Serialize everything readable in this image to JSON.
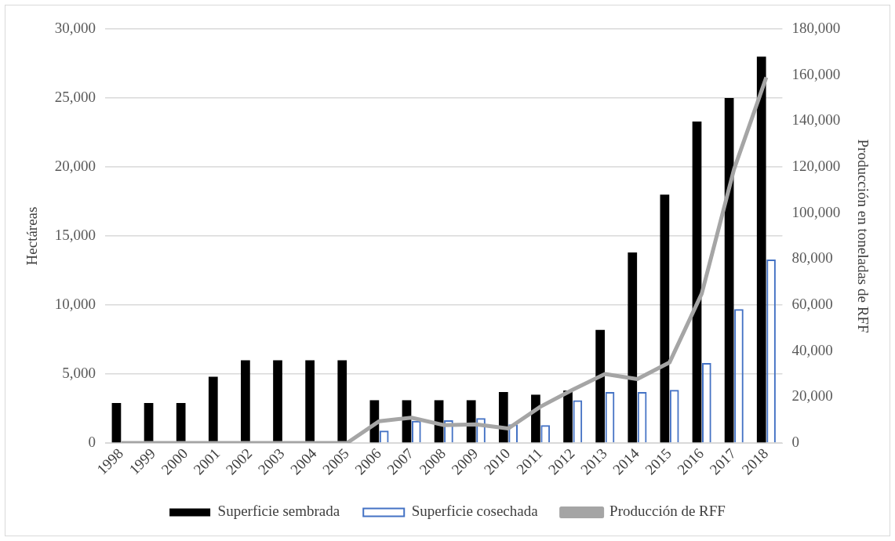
{
  "chart_data": {
    "type": "bar",
    "ylabel": "Hectáreas",
    "y2label": "Producción en toneladas de RFF",
    "categories": [
      "1998",
      "1999",
      "2000",
      "2001",
      "2002",
      "2003",
      "2004",
      "2005",
      "2006",
      "2007",
      "2008",
      "2009",
      "2010",
      "2011",
      "2012",
      "2013",
      "2014",
      "2015",
      "2016",
      "2017",
      "2018"
    ],
    "series": [
      {
        "name": "Superficie sembrada",
        "color": "#000000",
        "values": [
          2900,
          2900,
          2900,
          4800,
          6000,
          6000,
          6000,
          6000,
          3100,
          3100,
          3100,
          3100,
          3700,
          3500,
          3800,
          8200,
          13800,
          18000,
          23300,
          25000,
          28000
        ]
      },
      {
        "name": "Superficie cosechada",
        "color": "#4472c4",
        "values": [
          null,
          null,
          null,
          null,
          null,
          null,
          null,
          null,
          900,
          1600,
          1650,
          1800,
          1350,
          1300,
          3100,
          3700,
          3700,
          3850,
          5800,
          9700,
          13300
        ]
      },
      {
        "name": "Producción de RFF",
        "type": "line",
        "axis": "y2",
        "color": "#a5a5a5",
        "values": [
          0,
          0,
          0,
          0,
          0,
          0,
          0,
          0,
          9500,
          11000,
          7800,
          8100,
          6300,
          15800,
          23200,
          30000,
          27800,
          35000,
          65000,
          119000,
          159000
        ]
      }
    ],
    "ylim": [
      0,
      30000
    ],
    "yticks": [
      0,
      {
        "value": 5000,
        "label": "5,000"
      },
      {
        "value": 10000,
        "label": "10,000"
      },
      {
        "value": 15000,
        "label": "15,000"
      },
      {
        "value": 20000,
        "label": "20,000"
      },
      {
        "value": 25000,
        "label": "25,000"
      },
      {
        "value": 30000,
        "label": "30,000"
      }
    ],
    "y2lim": [
      0,
      180000
    ],
    "y2ticks": [
      0,
      {
        "value": 20000,
        "label": "20,000"
      },
      {
        "value": 40000,
        "label": "40,000"
      },
      {
        "value": 60000,
        "label": "60,000"
      },
      {
        "value": 80000,
        "label": "80,000"
      },
      {
        "value": 100000,
        "label": "100,000"
      },
      {
        "value": 120000,
        "label": "120,000"
      },
      {
        "value": 140000,
        "label": "140,000"
      },
      {
        "value": 160000,
        "label": "160,000"
      },
      {
        "value": 180000,
        "label": "180,000"
      }
    ],
    "grid": "y",
    "legend": "bottom",
    "marker": "none"
  }
}
